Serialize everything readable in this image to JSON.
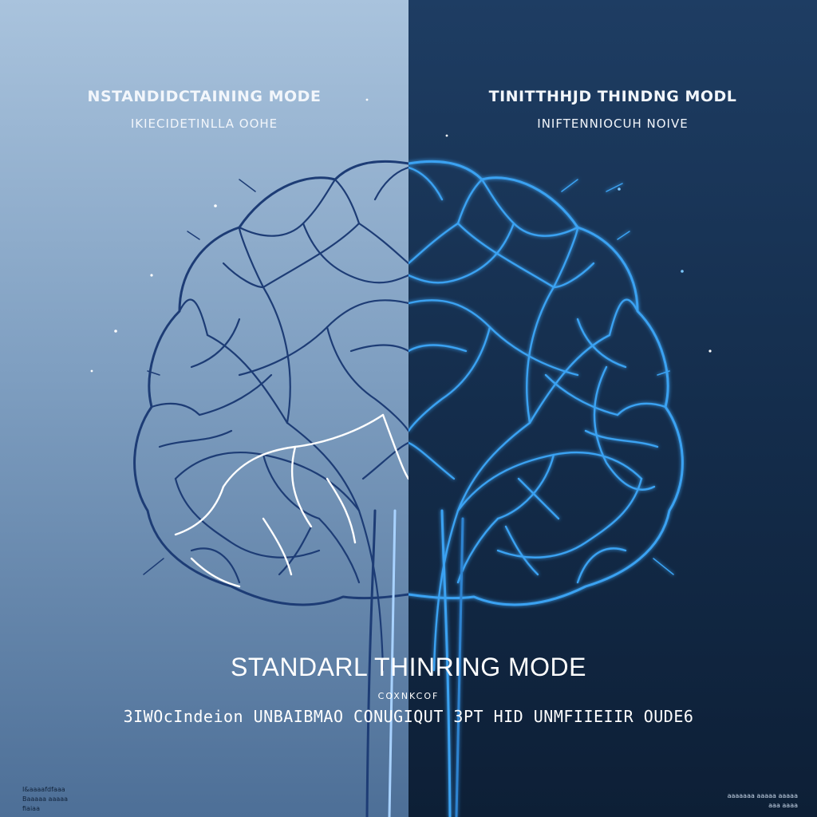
{
  "left_panel": {
    "heading_line1": "NSTANDIDCTAINING MODE",
    "heading_line2": "IKIECIDETINLLA OOHE",
    "colors": {
      "bg_top": "#a9c3dd",
      "bg_bottom": "#4d6f97",
      "vein": "#1d3c75",
      "highlight": "#ffffff"
    }
  },
  "right_panel": {
    "heading_line1": "TINITTHHJD THINDNG MODL",
    "heading_line2": "INIFTENNIOCUH NOIVE",
    "colors": {
      "bg_top": "#1e3d63",
      "bg_bottom": "#0d1f36",
      "vein": "#3aa2f2",
      "glow": "#5fc0ff"
    }
  },
  "caption": {
    "title": "STANDARL THINRING MODE",
    "small": "COXNKCOF",
    "subtitle": "3IWOcIndeion UNBAIBMAO CONUGIQUT 3PT HID UNMFIIEIIR OUDE6"
  },
  "footer": {
    "left": "I&aaaafdfaaa\nBaaaaa aaaaa\nfiaiaa",
    "right": "aaaaaaa aaaaa aaaaa\naaa aaaa"
  },
  "icons": [
    "brain-icon"
  ]
}
